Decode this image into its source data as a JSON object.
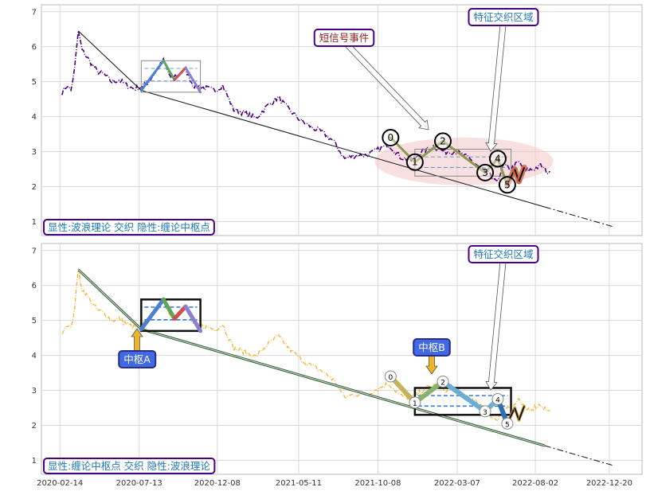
{
  "chart_data": [
    {
      "type": "line",
      "panel": "top",
      "ylim": [
        0.6,
        7.2
      ],
      "yticks": [
        1,
        2,
        3,
        4,
        5,
        6,
        7
      ],
      "x_tick_labels": [],
      "price_series": [
        [
          "2020-02-18",
          4.7
        ],
        [
          "2020-02-28",
          4.9
        ],
        [
          "2020-03-06",
          4.75
        ],
        [
          "2020-03-13",
          5.4
        ],
        [
          "2020-03-20",
          6.45
        ],
        [
          "2020-03-27",
          5.9
        ],
        [
          "2020-04-10",
          5.6
        ],
        [
          "2020-04-24",
          5.3
        ],
        [
          "2020-05-08",
          5.2
        ],
        [
          "2020-05-22",
          5.0
        ],
        [
          "2020-06-05",
          5.05
        ],
        [
          "2020-06-19",
          4.9
        ],
        [
          "2020-07-03",
          4.8
        ],
        [
          "2020-07-17",
          4.85
        ],
        [
          "2020-07-31",
          5.0
        ],
        [
          "2020-08-14",
          5.3
        ],
        [
          "2020-08-28",
          5.6
        ],
        [
          "2020-09-11",
          5.1
        ],
        [
          "2020-09-25",
          5.2
        ],
        [
          "2020-10-09",
          5.35
        ],
        [
          "2020-10-23",
          4.9
        ],
        [
          "2020-11-06",
          4.85
        ],
        [
          "2020-11-20",
          4.8
        ],
        [
          "2020-12-04",
          4.75
        ],
        [
          "2020-12-18",
          4.9
        ],
        [
          "2021-01-08",
          4.2
        ],
        [
          "2021-01-29",
          4.1
        ],
        [
          "2021-02-19",
          3.95
        ],
        [
          "2021-03-12",
          4.3
        ],
        [
          "2021-04-02",
          4.55
        ],
        [
          "2021-04-23",
          4.2
        ],
        [
          "2021-05-14",
          3.9
        ],
        [
          "2021-06-04",
          3.7
        ],
        [
          "2021-06-25",
          3.55
        ],
        [
          "2021-07-16",
          3.3
        ],
        [
          "2021-08-06",
          2.8
        ],
        [
          "2021-08-27",
          2.9
        ],
        [
          "2021-09-17",
          2.9
        ],
        [
          "2021-10-08",
          3.05
        ],
        [
          "2021-10-29",
          3.2
        ],
        [
          "2021-11-19",
          2.85
        ],
        [
          "2021-12-10",
          2.75
        ],
        [
          "2021-12-31",
          3.0
        ],
        [
          "2022-01-21",
          3.15
        ],
        [
          "2022-02-11",
          3.0
        ],
        [
          "2022-03-04",
          3.0
        ],
        [
          "2022-03-25",
          2.85
        ],
        [
          "2022-04-15",
          2.6
        ],
        [
          "2022-05-06",
          2.35
        ],
        [
          "2022-05-20",
          2.1
        ],
        [
          "2022-06-03",
          2.6
        ],
        [
          "2022-06-17",
          2.5
        ],
        [
          "2022-07-01",
          2.7
        ],
        [
          "2022-07-15",
          2.45
        ],
        [
          "2022-07-29",
          2.5
        ],
        [
          "2022-08-12",
          2.6
        ],
        [
          "2022-08-26",
          2.4
        ],
        [
          "2022-09-02",
          2.35
        ]
      ],
      "trend_line": [
        [
          "2020-03-20",
          6.45
        ],
        [
          "2020-07-17",
          4.75
        ],
        [
          "2022-12-28",
          0.85
        ]
      ],
      "zigzag_points": [
        [
          "2020-07-17",
          4.75
        ],
        [
          "2020-08-28",
          5.6
        ],
        [
          "2020-09-18",
          5.05
        ],
        [
          "2020-10-09",
          5.4
        ],
        [
          "2020-11-06",
          4.7
        ]
      ],
      "zhongshu_boxes": [
        {
          "x0": "2020-07-17",
          "x1": "2020-11-06",
          "y0": 4.7,
          "y1": 5.6,
          "mid_lo": 5.02,
          "mid_hi": 5.38
        },
        {
          "x0": "2021-12-17",
          "x1": "2022-06-17",
          "y0": 2.3,
          "y1": 3.07,
          "mid_lo": 2.55,
          "mid_hi": 2.85
        }
      ],
      "wave_points": [
        {
          "label": "0",
          "x": "2021-11-01",
          "y": 3.4
        },
        {
          "label": "1",
          "x": "2021-12-17",
          "y": 2.7
        },
        {
          "label": "2",
          "x": "2022-02-08",
          "y": 3.3
        },
        {
          "label": "3",
          "x": "2022-04-29",
          "y": 2.4
        },
        {
          "label": "4",
          "x": "2022-05-23",
          "y": 2.8
        },
        {
          "label": "5",
          "x": "2022-06-10",
          "y": 2.05
        }
      ],
      "legend": "显性:波浪理论 交织 隐性:缠论中枢点",
      "callouts": [
        {
          "text": "短信号事件",
          "color": "#8b1a1a"
        },
        {
          "text": "特征交织区域",
          "color": "#1f77b4"
        }
      ]
    },
    {
      "type": "line",
      "panel": "bottom",
      "ylim": [
        0.6,
        7.2
      ],
      "yticks": [
        1,
        2,
        3,
        4,
        5,
        6,
        7
      ],
      "x_tick_labels": [
        "2020-02-14",
        "2020-07-13",
        "2020-12-08",
        "2021-05-11",
        "2021-10-08",
        "2022-03-07",
        "2022-08-02",
        "2022-12-20"
      ],
      "legend": "显性:缠论中枢点 交织 隐性:波浪理论",
      "callouts": [
        {
          "text": "中枢A",
          "color": "#ffffff"
        },
        {
          "text": "中枢B",
          "color": "#ffffff"
        },
        {
          "text": "特征交织区域",
          "color": "#1f77b4"
        }
      ],
      "wave_points": [
        {
          "label": "0",
          "x": "2021-11-01",
          "y": 3.4
        },
        {
          "label": "1",
          "x": "2021-12-17",
          "y": 2.65
        },
        {
          "label": "2",
          "x": "2022-02-08",
          "y": 3.25
        },
        {
          "label": "3",
          "x": "2022-04-29",
          "y": 2.4
        },
        {
          "label": "4",
          "x": "2022-05-23",
          "y": 2.75
        },
        {
          "label": "5",
          "x": "2022-06-10",
          "y": 2.05
        }
      ]
    }
  ]
}
